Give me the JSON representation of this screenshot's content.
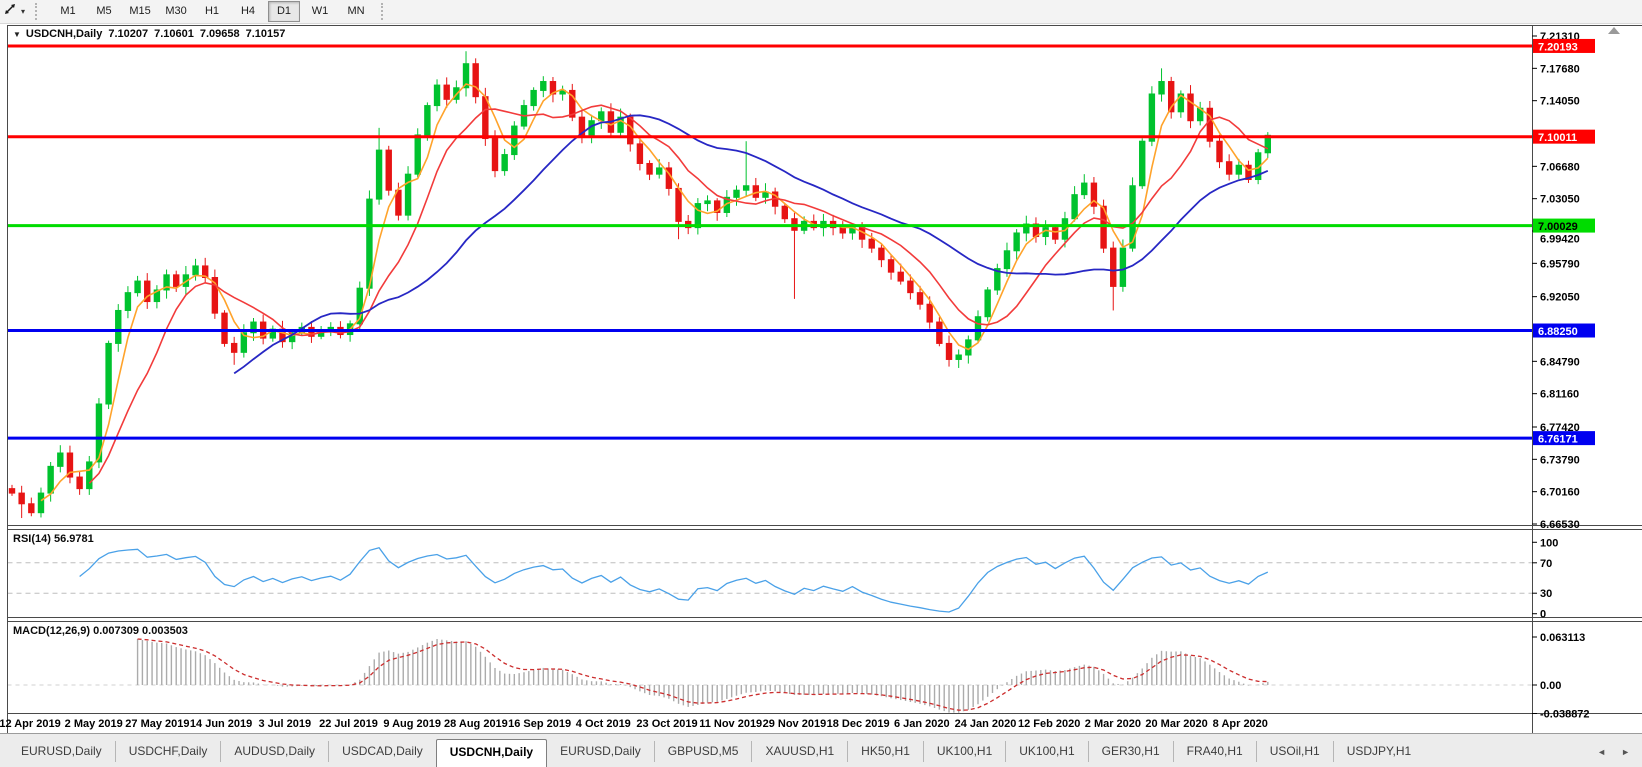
{
  "toolbar": {
    "tool_icon": "trend-cursor-icon",
    "timeframes": [
      "M1",
      "M5",
      "M15",
      "M30",
      "H1",
      "H4",
      "D1",
      "W1",
      "MN"
    ],
    "active_timeframe": "D1"
  },
  "chart": {
    "title_symbol": "USDCNH,Daily",
    "ohlc": {
      "open": "7.10207",
      "high": "7.10601",
      "low": "7.09658",
      "close": "7.10157"
    },
    "price_axis": {
      "ticks": [
        "7.21310",
        "7.17680",
        "7.14050",
        "7.06680",
        "7.03050",
        "6.99420",
        "6.95790",
        "6.92050",
        "6.84790",
        "6.81160",
        "6.77420",
        "6.73790",
        "6.70160",
        "6.66530"
      ]
    },
    "hlines": [
      {
        "label": "7.20193",
        "value": 7.20193,
        "color": "#FF0000",
        "text_color": "#FFFFFF"
      },
      {
        "label": "7.10011",
        "value": 7.10011,
        "color": "#FF0000",
        "text_color": "#FFFFFF"
      },
      {
        "label": "7.00029",
        "value": 7.00029,
        "color": "#00DC00",
        "text_color": "#000000"
      },
      {
        "label": "6.88250",
        "value": 6.8825,
        "color": "#0000F0",
        "text_color": "#FFFFFF"
      },
      {
        "label": "6.76171",
        "value": 6.76171,
        "color": "#0000F0",
        "text_color": "#FFFFFF"
      }
    ],
    "date_axis": [
      "12 Apr 2019",
      "2 May 2019",
      "27 May 2019",
      "14 Jun 2019",
      "3 Jul 2019",
      "22 Jul 2019",
      "9 Aug 2019",
      "28 Aug 2019",
      "16 Sep 2019",
      "4 Oct 2019",
      "23 Oct 2019",
      "11 Nov 2019",
      "29 Nov 2019",
      "18 Dec 2019",
      "6 Jan 2020",
      "24 Jan 2020",
      "12 Feb 2020",
      "2 Mar 2020",
      "20 Mar 2020",
      "8 Apr 2020"
    ]
  },
  "rsi": {
    "name": "RSI(14)",
    "value": "56.9781",
    "ticks": [
      "100",
      "70",
      "30",
      "0"
    ],
    "levels": [
      70,
      30
    ]
  },
  "macd": {
    "name": "MACD(12,26,9)",
    "value_main": "0.007309",
    "value_signal": "0.003503",
    "ticks": [
      "0.063113",
      "0.00",
      "-0.038872"
    ]
  },
  "tabs": {
    "items": [
      "EURUSD,Daily",
      "USDCHF,Daily",
      "AUDUSD,Daily",
      "USDCAD,Daily",
      "USDCNH,Daily",
      "EURUSD,Daily",
      "GBPUSD,M5",
      "XAUUSD,H1",
      "HK50,H1",
      "UK100,H1",
      "UK100,H1",
      "GER30,H1",
      "FRA40,H1",
      "USOil,H1",
      "USDJPY,H1"
    ],
    "active_index": 4
  },
  "chart_data": {
    "type": "candlestick",
    "symbol": "USDCNH",
    "timeframe": "Daily",
    "title": "USDCNH,Daily",
    "y_range": [
      6.6653,
      7.2131
    ],
    "x_range_dates": [
      "12 Apr 2019",
      "8 Apr 2020"
    ],
    "first_open": 6.705,
    "closes": [
      6.7,
      6.688,
      6.678,
      6.7,
      6.73,
      6.745,
      6.718,
      6.705,
      6.735,
      6.8,
      6.868,
      6.905,
      6.925,
      6.938,
      6.915,
      6.928,
      6.945,
      6.932,
      6.945,
      6.955,
      6.942,
      6.902,
      6.868,
      6.858,
      6.88,
      6.892,
      6.874,
      6.884,
      6.87,
      6.88,
      6.886,
      6.876,
      6.882,
      6.886,
      6.878,
      6.89,
      6.93,
      7.03,
      7.085,
      7.04,
      7.012,
      7.058,
      7.102,
      7.135,
      7.158,
      7.142,
      7.155,
      7.182,
      7.145,
      7.098,
      7.062,
      7.08,
      7.112,
      7.135,
      7.152,
      7.162,
      7.148,
      7.152,
      7.122,
      7.102,
      7.118,
      7.128,
      7.105,
      7.122,
      7.092,
      7.07,
      7.058,
      7.065,
      7.042,
      7.005,
      6.998,
      7.025,
      7.028,
      7.015,
      7.032,
      7.04,
      7.045,
      7.032,
      7.038,
      7.022,
      7.008,
      6.995,
      7.005,
      6.998,
      7.005,
      6.998,
      6.992,
      6.998,
      6.985,
      6.975,
      6.962,
      6.948,
      6.938,
      6.925,
      6.912,
      6.892,
      6.868,
      6.85,
      6.855,
      6.872,
      6.898,
      6.928,
      6.952,
      6.972,
      6.992,
      7.002,
      6.988,
      6.998,
      6.985,
      7.008,
      7.035,
      7.048,
      7.022,
      6.975,
      6.932,
      6.975,
      7.045,
      7.095,
      7.148,
      7.162,
      7.128,
      7.148,
      7.118,
      7.132,
      7.095,
      7.072,
      7.058,
      7.068,
      7.052,
      7.082,
      7.1016
    ],
    "special_wicks": {
      "1": {
        "low": 6.672
      },
      "2": {
        "low": 6.674
      },
      "23": {
        "low": 6.844
      },
      "38": {
        "high": 7.11
      },
      "47": {
        "high": 7.196
      },
      "55": {
        "high": 7.168
      },
      "69": {
        "low": 6.985
      },
      "76": {
        "high": 7.095
      },
      "81": {
        "low": 6.918
      },
      "97": {
        "low": 6.842
      },
      "111": {
        "high": 7.058
      },
      "114": {
        "low": 6.905
      },
      "119": {
        "high": 7.1768
      }
    },
    "indicators": {
      "rsi_period": 14,
      "macd_params": "12,26,9",
      "moving_averages": [
        "fast-orange",
        "mid-red",
        "slow-blue"
      ]
    },
    "style": {
      "bull": "#00C22E",
      "bear": "#E71414",
      "ma_fast": "#FFA32B",
      "ma_mid": "#F23B3B",
      "ma_slow": "#2727C4",
      "rsi_line": "#4AA1E8",
      "rsi_level_dash": "#BDBDBD",
      "macd_hist": "#ABABAB",
      "macd_signal": "#CC2E2E",
      "axis_text": "#000000",
      "pane_border": "#4A4A4A"
    }
  }
}
